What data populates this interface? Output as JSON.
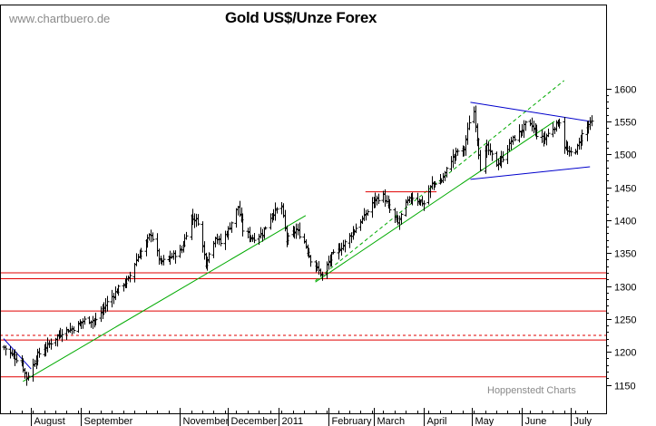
{
  "chart_data": {
    "type": "ohlc",
    "title": "Gold US$/Unze Forex",
    "watermark": "www.chartbuero.de",
    "credit": "Hoppenstedt Charts",
    "ylim": [
      1135,
      1620
    ],
    "y_ticks": [
      1150,
      1200,
      1250,
      1300,
      1350,
      1400,
      1450,
      1500,
      1550,
      1600
    ],
    "x_range": [
      "2010-07-15",
      "2011-07-14"
    ],
    "x_labels": [
      {
        "label": "August",
        "date": "2010-08-01"
      },
      {
        "label": "September",
        "date": "2010-09-01"
      },
      {
        "label": "November",
        "date": "2010-11-01"
      },
      {
        "label": "December",
        "date": "2010-12-01"
      },
      {
        "label": "2011",
        "date": "2011-01-01"
      },
      {
        "label": "February",
        "date": "2011-02-01"
      },
      {
        "label": "March",
        "date": "2011-03-01"
      },
      {
        "label": "April",
        "date": "2011-04-01"
      },
      {
        "label": "May",
        "date": "2011-05-01"
      },
      {
        "label": "June",
        "date": "2011-06-01"
      },
      {
        "label": "July",
        "date": "2011-07-01"
      }
    ],
    "price_path": [
      [
        "2010-07-15",
        1207
      ],
      [
        "2010-07-20",
        1196
      ],
      [
        "2010-07-26",
        1183
      ],
      [
        "2010-07-29",
        1160
      ],
      [
        "2010-08-05",
        1195
      ],
      [
        "2010-08-12",
        1212
      ],
      [
        "2010-08-20",
        1230
      ],
      [
        "2010-08-27",
        1236
      ],
      [
        "2010-09-03",
        1248
      ],
      [
        "2010-09-10",
        1248
      ],
      [
        "2010-09-17",
        1275
      ],
      [
        "2010-09-24",
        1296
      ],
      [
        "2010-09-30",
        1310
      ],
      [
        "2010-10-05",
        1340
      ],
      [
        "2010-10-11",
        1365
      ],
      [
        "2010-10-14",
        1380
      ],
      [
        "2010-10-20",
        1335
      ],
      [
        "2010-10-27",
        1345
      ],
      [
        "2010-11-02",
        1355
      ],
      [
        "2010-11-08",
        1405
      ],
      [
        "2010-11-12",
        1398
      ],
      [
        "2010-11-17",
        1335
      ],
      [
        "2010-11-23",
        1375
      ],
      [
        "2010-11-26",
        1365
      ],
      [
        "2010-12-01",
        1385
      ],
      [
        "2010-12-07",
        1420
      ],
      [
        "2010-12-10",
        1385
      ],
      [
        "2010-12-16",
        1372
      ],
      [
        "2010-12-22",
        1380
      ],
      [
        "2010-12-28",
        1410
      ],
      [
        "2011-01-03",
        1420
      ],
      [
        "2011-01-06",
        1370
      ],
      [
        "2011-01-12",
        1385
      ],
      [
        "2011-01-17",
        1368
      ],
      [
        "2011-01-21",
        1340
      ],
      [
        "2011-01-28",
        1316
      ],
      [
        "2011-02-03",
        1345
      ],
      [
        "2011-02-10",
        1362
      ],
      [
        "2011-02-17",
        1385
      ],
      [
        "2011-02-23",
        1405
      ],
      [
        "2011-03-01",
        1430
      ],
      [
        "2011-03-07",
        1437
      ],
      [
        "2011-03-11",
        1415
      ],
      [
        "2011-03-16",
        1395
      ],
      [
        "2011-03-21",
        1425
      ],
      [
        "2011-03-25",
        1435
      ],
      [
        "2011-04-01",
        1425
      ],
      [
        "2011-04-06",
        1455
      ],
      [
        "2011-04-12",
        1460
      ],
      [
        "2011-04-18",
        1492
      ],
      [
        "2011-04-22",
        1505
      ],
      [
        "2011-04-26",
        1508
      ],
      [
        "2011-04-29",
        1550
      ],
      [
        "2011-05-02",
        1565
      ],
      [
        "2011-05-04",
        1525
      ],
      [
        "2011-05-06",
        1480
      ],
      [
        "2011-05-10",
        1510
      ],
      [
        "2011-05-16",
        1485
      ],
      [
        "2011-05-20",
        1495
      ],
      [
        "2011-05-25",
        1520
      ],
      [
        "2011-05-31",
        1535
      ],
      [
        "2011-06-03",
        1545
      ],
      [
        "2011-06-07",
        1543
      ],
      [
        "2011-06-10",
        1530
      ],
      [
        "2011-06-14",
        1522
      ],
      [
        "2011-06-20",
        1540
      ],
      [
        "2011-06-24",
        1550
      ],
      [
        "2011-06-27",
        1512
      ],
      [
        "2011-06-30",
        1500
      ],
      [
        "2011-07-05",
        1510
      ],
      [
        "2011-07-08",
        1530
      ],
      [
        "2011-07-12",
        1545
      ],
      [
        "2011-07-14",
        1548
      ]
    ],
    "horizontal_lines": [
      {
        "y": 1320,
        "color": "#e00000",
        "style": "solid"
      },
      {
        "y": 1311,
        "color": "#e00000",
        "style": "solid"
      },
      {
        "y": 1262,
        "color": "#e00000",
        "style": "solid"
      },
      {
        "y": 1225,
        "color": "#e00000",
        "style": "dashed"
      },
      {
        "y": 1218,
        "color": "#e00000",
        "style": "solid"
      },
      {
        "y": 1162,
        "color": "#e00000",
        "style": "solid"
      }
    ],
    "trend_lines": [
      {
        "from": [
          "2010-07-15",
          1220
        ],
        "to": [
          "2010-08-01",
          1174
        ],
        "color": "#0000cc",
        "style": "solid"
      },
      {
        "from": [
          "2010-07-27",
          1155
        ],
        "to": [
          "2011-01-18",
          1407
        ],
        "color": "#00aa00",
        "style": "solid"
      },
      {
        "from": [
          "2011-01-24",
          1308
        ],
        "to": [
          "2011-06-27",
          1612
        ],
        "color": "#00aa00",
        "style": "dashed"
      },
      {
        "from": [
          "2011-01-24",
          1306
        ],
        "to": [
          "2011-06-21",
          1550
        ],
        "color": "#00aa00",
        "style": "solid"
      },
      {
        "from": [
          "2011-02-24",
          1443
        ],
        "to": [
          "2011-04-09",
          1443
        ],
        "color": "#e00000",
        "style": "solid"
      },
      {
        "from": [
          "2011-04-30",
          1579
        ],
        "to": [
          "2011-07-13",
          1550
        ],
        "color": "#0000cc",
        "style": "solid"
      },
      {
        "from": [
          "2011-04-30",
          1462
        ],
        "to": [
          "2011-07-13",
          1481
        ],
        "color": "#0000cc",
        "style": "solid"
      }
    ],
    "colors": {
      "bars": "#000000",
      "support": "#e00000",
      "trend": "#00aa00",
      "channel": "#0000cc"
    }
  }
}
